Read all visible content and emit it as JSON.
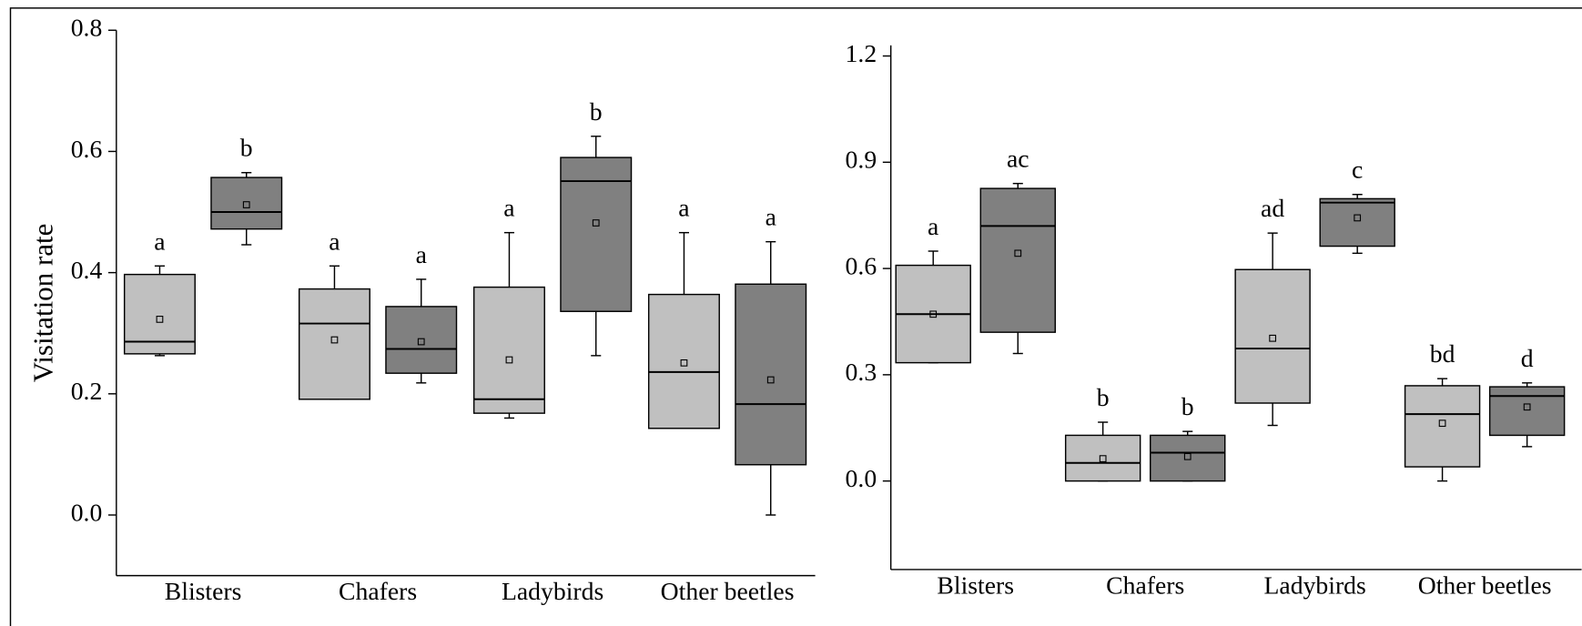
{
  "chart_data": [
    {
      "type": "box",
      "ylabel": "Visitation rate",
      "categories": [
        "Blisters",
        "Chafers",
        "Ladybirds",
        "Other beetles"
      ],
      "ylim": [
        -0.1,
        0.8
      ],
      "yticks": [
        {
          "value": 0,
          "label": "0.0"
        },
        0.2,
        0.4,
        0.6,
        0.8
      ],
      "series": [
        {
          "color": "#c0c0c0",
          "boxes": [
            {
              "whisker_low": 0.263,
              "q1": 0.266,
              "median": 0.286,
              "q3": 0.397,
              "whisker_high": 0.411,
              "mean": 0.323,
              "letter": "a"
            },
            {
              "whisker_low": 0.191,
              "q1": 0.191,
              "median": 0.316,
              "q3": 0.373,
              "whisker_high": 0.411,
              "mean": 0.289,
              "letter": "a"
            },
            {
              "whisker_low": 0.16,
              "q1": 0.168,
              "median": 0.191,
              "q3": 0.376,
              "whisker_high": 0.466,
              "mean": 0.256,
              "letter": "a"
            },
            {
              "whisker_low": 0.143,
              "q1": 0.143,
              "median": 0.236,
              "q3": 0.364,
              "whisker_high": 0.466,
              "mean": 0.251,
              "letter": "a"
            }
          ]
        },
        {
          "color": "#808080",
          "boxes": [
            {
              "whisker_low": 0.446,
              "q1": 0.472,
              "median": 0.5,
              "q3": 0.557,
              "whisker_high": 0.565,
              "mean": 0.512,
              "letter": "b"
            },
            {
              "whisker_low": 0.218,
              "q1": 0.234,
              "median": 0.274,
              "q3": 0.344,
              "whisker_high": 0.389,
              "mean": 0.286,
              "letter": "a"
            },
            {
              "whisker_low": 0.263,
              "q1": 0.336,
              "median": 0.551,
              "q3": 0.59,
              "whisker_high": 0.625,
              "mean": 0.482,
              "letter": "b"
            },
            {
              "whisker_low": 0.0,
              "q1": 0.083,
              "median": 0.183,
              "q3": 0.381,
              "whisker_high": 0.451,
              "mean": 0.223,
              "letter": "a"
            }
          ]
        }
      ]
    },
    {
      "type": "box",
      "categories": [
        "Blisters",
        "Chafers",
        "Ladybirds",
        "Other beetles"
      ],
      "ylim": [
        -0.25,
        1.23
      ],
      "yticks": [
        {
          "value": 0,
          "label": "0.0"
        },
        0.3,
        0.6,
        0.9,
        1.2
      ],
      "series": [
        {
          "color": "#c0c0c0",
          "boxes": [
            {
              "whisker_low": 0.334,
              "q1": 0.334,
              "median": 0.471,
              "q3": 0.609,
              "whisker_high": 0.649,
              "mean": 0.471,
              "letter": "a"
            },
            {
              "whisker_low": 0.0,
              "q1": 0.0,
              "median": 0.051,
              "q3": 0.129,
              "whisker_high": 0.166,
              "mean": 0.063,
              "letter": "b"
            },
            {
              "whisker_low": 0.157,
              "q1": 0.22,
              "median": 0.374,
              "q3": 0.597,
              "whisker_high": 0.7,
              "mean": 0.403,
              "letter": "ad"
            },
            {
              "whisker_low": 0.0,
              "q1": 0.04,
              "median": 0.189,
              "q3": 0.269,
              "whisker_high": 0.289,
              "mean": 0.163,
              "letter": "bd"
            }
          ]
        },
        {
          "color": "#808080",
          "boxes": [
            {
              "whisker_low": 0.36,
              "q1": 0.42,
              "median": 0.72,
              "q3": 0.826,
              "whisker_high": 0.84,
              "mean": 0.643,
              "letter": "ac"
            },
            {
              "whisker_low": 0.0,
              "q1": 0.0,
              "median": 0.08,
              "q3": 0.129,
              "whisker_high": 0.14,
              "mean": 0.069,
              "letter": "b"
            },
            {
              "whisker_low": 0.643,
              "q1": 0.663,
              "median": 0.786,
              "q3": 0.797,
              "whisker_high": 0.809,
              "mean": 0.743,
              "letter": "c"
            },
            {
              "whisker_low": 0.097,
              "q1": 0.129,
              "median": 0.24,
              "q3": 0.266,
              "whisker_high": 0.277,
              "mean": 0.209,
              "letter": "d"
            }
          ]
        }
      ]
    }
  ]
}
